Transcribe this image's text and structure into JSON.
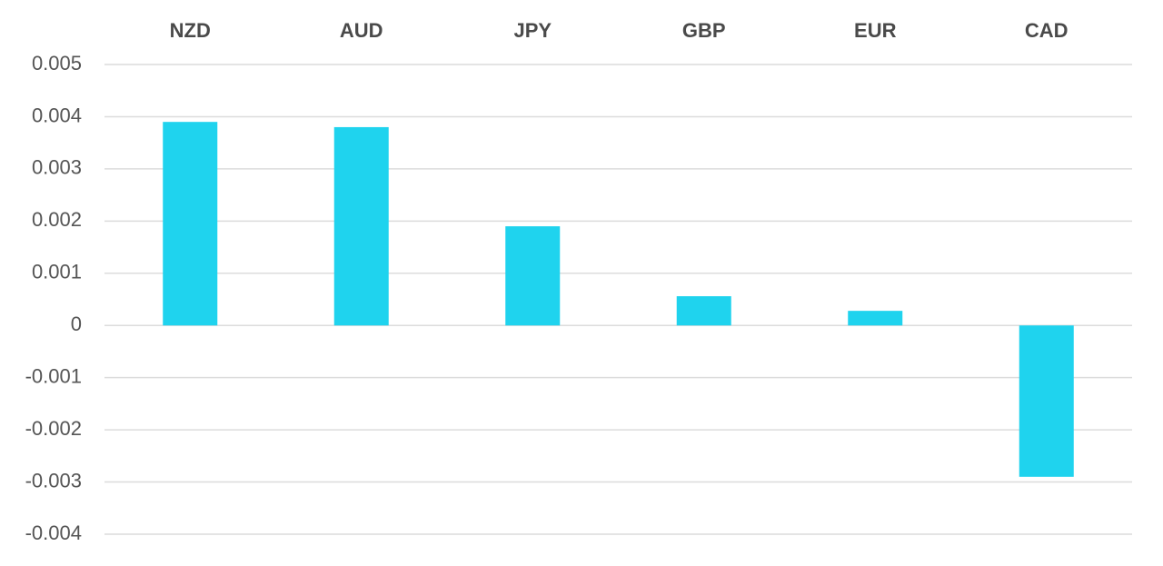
{
  "chart_data": {
    "type": "bar",
    "categories": [
      "NZD",
      "AUD",
      "JPY",
      "GBP",
      "EUR",
      "CAD"
    ],
    "values": [
      0.0039,
      0.0038,
      0.0019,
      0.00056,
      0.00028,
      -0.0029
    ],
    "color": "#1fd3ee",
    "ylim": [
      -0.004,
      0.005
    ],
    "yticks": [
      0.005,
      0.004,
      0.003,
      0.002,
      0.001,
      0,
      -0.001,
      -0.002,
      -0.003,
      -0.004
    ],
    "grid": true
  }
}
